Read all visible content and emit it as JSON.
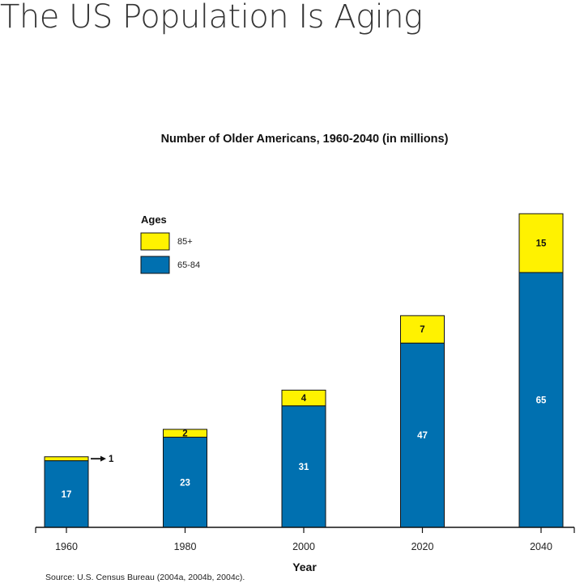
{
  "page": {
    "title": "The US Population Is Aging"
  },
  "chart_data": {
    "type": "bar",
    "stacked": true,
    "title": "Number of Older Americans, 1960-2040 (in millions)",
    "xlabel": "Year",
    "ylabel": "",
    "categories": [
      "1960",
      "1980",
      "2000",
      "2020",
      "2040"
    ],
    "series": [
      {
        "name": "65-84",
        "color": "#0070B0",
        "values": [
          17,
          23,
          31,
          47,
          65
        ]
      },
      {
        "name": "85+",
        "color": "#FFF200",
        "values": [
          1,
          2,
          4,
          7,
          15
        ]
      }
    ],
    "ylim": [
      0,
      85
    ],
    "legend": {
      "title": "Ages",
      "position": "top-left"
    },
    "annotations": [
      {
        "category": "1960",
        "series": "85+",
        "text": "1",
        "style": "arrow"
      }
    ],
    "source": "Source: U.S. Census Bureau (2004a, 2004b, 2004c)."
  }
}
